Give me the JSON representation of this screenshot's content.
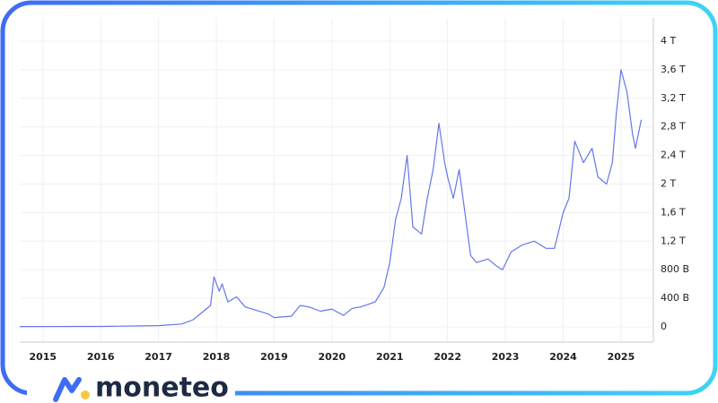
{
  "brand": "moneteo",
  "chart_data": {
    "type": "line",
    "color": "#6477ea",
    "grid": true,
    "x": [
      2014.6,
      2015,
      2016,
      2017,
      2017.4,
      2017.6,
      2017.9,
      2017.96,
      2018.05,
      2018.1,
      2018.2,
      2018.35,
      2018.5,
      2018.7,
      2018.9,
      2019.0,
      2019.3,
      2019.45,
      2019.6,
      2019.8,
      2020.0,
      2020.2,
      2020.35,
      2020.5,
      2020.75,
      2020.9,
      2021.0,
      2021.1,
      2021.2,
      2021.3,
      2021.4,
      2021.55,
      2021.65,
      2021.75,
      2021.85,
      2021.95,
      2022.0,
      2022.1,
      2022.2,
      2022.3,
      2022.4,
      2022.5,
      2022.7,
      2022.85,
      2022.95,
      2023.1,
      2023.3,
      2023.5,
      2023.7,
      2023.85,
      2024.0,
      2024.1,
      2024.2,
      2024.35,
      2024.5,
      2024.6,
      2024.75,
      2024.85,
      2024.92,
      2025.0,
      2025.1,
      2025.2,
      2025.25,
      2025.35
    ],
    "values": [
      5,
      5,
      6,
      17,
      40,
      100,
      300,
      700,
      500,
      600,
      350,
      420,
      280,
      230,
      180,
      130,
      150,
      300,
      280,
      220,
      250,
      160,
      260,
      280,
      350,
      550,
      900,
      1500,
      1800,
      2400,
      1400,
      1300,
      1800,
      2200,
      2850,
      2300,
      2100,
      1800,
      2200,
      1600,
      1000,
      900,
      950,
      850,
      800,
      1050,
      1150,
      1200,
      1100,
      1100,
      1600,
      1800,
      2600,
      2300,
      2500,
      2100,
      2000,
      2300,
      3000,
      3600,
      3300,
      2700,
      2500,
      2900
    ],
    "xlim": [
      2014.6,
      2025.56
    ],
    "xticks": [
      2015,
      2016,
      2017,
      2018,
      2019,
      2020,
      2021,
      2022,
      2023,
      2024,
      2025
    ],
    "ylim": [
      0,
      4000
    ],
    "yticks": [
      0,
      {
        "value": 400,
        "label": "400 B"
      },
      {
        "value": 800,
        "label": "800 B"
      },
      {
        "value": 1200,
        "label": "1,2 T"
      },
      {
        "value": 1600,
        "label": "1,6 T"
      },
      {
        "value": 2000,
        "label": "2 T"
      },
      {
        "value": 2400,
        "label": "2,4 T"
      },
      {
        "value": 2800,
        "label": "2,8 T"
      },
      {
        "value": 3200,
        "label": "3,2 T"
      },
      {
        "value": 3600,
        "label": "3,6 T"
      },
      {
        "value": 4000,
        "label": "4 T"
      }
    ]
  }
}
